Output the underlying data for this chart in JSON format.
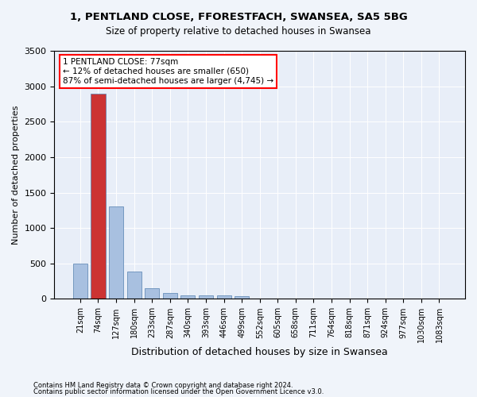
{
  "title1": "1, PENTLAND CLOSE, FFORESTFACH, SWANSEA, SA5 5BG",
  "title2": "Size of property relative to detached houses in Swansea",
  "xlabel": "Distribution of detached houses by size in Swansea",
  "ylabel": "Number of detached properties",
  "footer1": "Contains HM Land Registry data © Crown copyright and database right 2024.",
  "footer2": "Contains public sector information licensed under the Open Government Licence v3.0.",
  "annotation_line1": "1 PENTLAND CLOSE: 77sqm",
  "annotation_line2": "← 12% of detached houses are smaller (650)",
  "annotation_line3": "87% of semi-detached houses are larger (4,745) →",
  "bar_color": "#a8c0e0",
  "bar_edge_color": "#5580b0",
  "highlight_bar_color": "#cc3333",
  "categories": [
    "21sqm",
    "74sqm",
    "127sqm",
    "180sqm",
    "233sqm",
    "287sqm",
    "340sqm",
    "393sqm",
    "446sqm",
    "499sqm",
    "552sqm",
    "605sqm",
    "658sqm",
    "711sqm",
    "764sqm",
    "818sqm",
    "871sqm",
    "924sqm",
    "977sqm",
    "1030sqm",
    "1083sqm"
  ],
  "values": [
    500,
    2900,
    1300,
    390,
    150,
    80,
    50,
    45,
    45,
    40,
    5,
    3,
    2,
    1,
    1,
    0,
    0,
    0,
    0,
    0,
    0
  ],
  "highlight_index": 1,
  "ylim": [
    0,
    3500
  ],
  "yticks": [
    0,
    500,
    1000,
    1500,
    2000,
    2500,
    3000,
    3500
  ],
  "bg_color": "#f0f4fa",
  "plot_bg_color": "#e8eef8"
}
